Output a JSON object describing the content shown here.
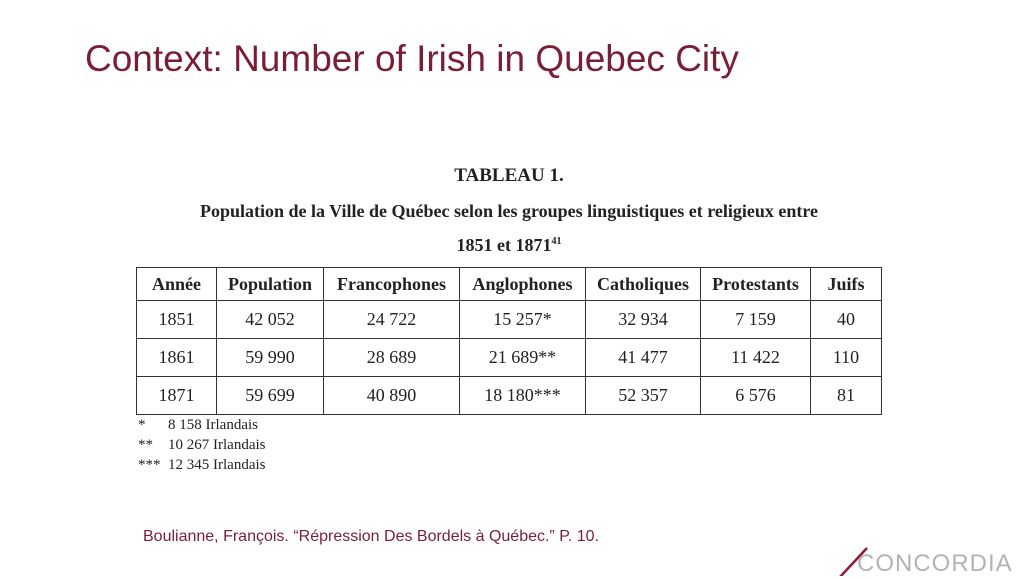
{
  "slide": {
    "title": "Context: Number of Irish in Quebec City",
    "citation": "Boulianne, François. “Répression Des Bordels à Québec.” P. 10.",
    "logo_text": "CONCORDIA",
    "accent_color": "#7a1e36"
  },
  "table": {
    "label": "TABLEAU 1.",
    "caption": "Population de la Ville de Québec selon les groupes linguistiques et religieux entre",
    "caption2": "1851 et 1871",
    "footnote_ref": "41",
    "headers": [
      "Année",
      "Population",
      "Francophones",
      "Anglophones",
      "Catholiques",
      "Protestants",
      "Juifs"
    ],
    "rows": [
      [
        "1851",
        "42 052",
        "24 722",
        "15 257*",
        "32 934",
        "7 159",
        "40"
      ],
      [
        "1861",
        "59 990",
        "28 689",
        "21 689**",
        "41 477",
        "11 422",
        "110"
      ],
      [
        "1871",
        "59 699",
        "40 890",
        "18 180***",
        "52 357",
        "6 576",
        "81"
      ]
    ],
    "notes": [
      {
        "mark": "*",
        "text": "8 158 Irlandais"
      },
      {
        "mark": "**",
        "text": "10 267 Irlandais"
      },
      {
        "mark": "***",
        "text": "12 345 Irlandais"
      }
    ]
  }
}
